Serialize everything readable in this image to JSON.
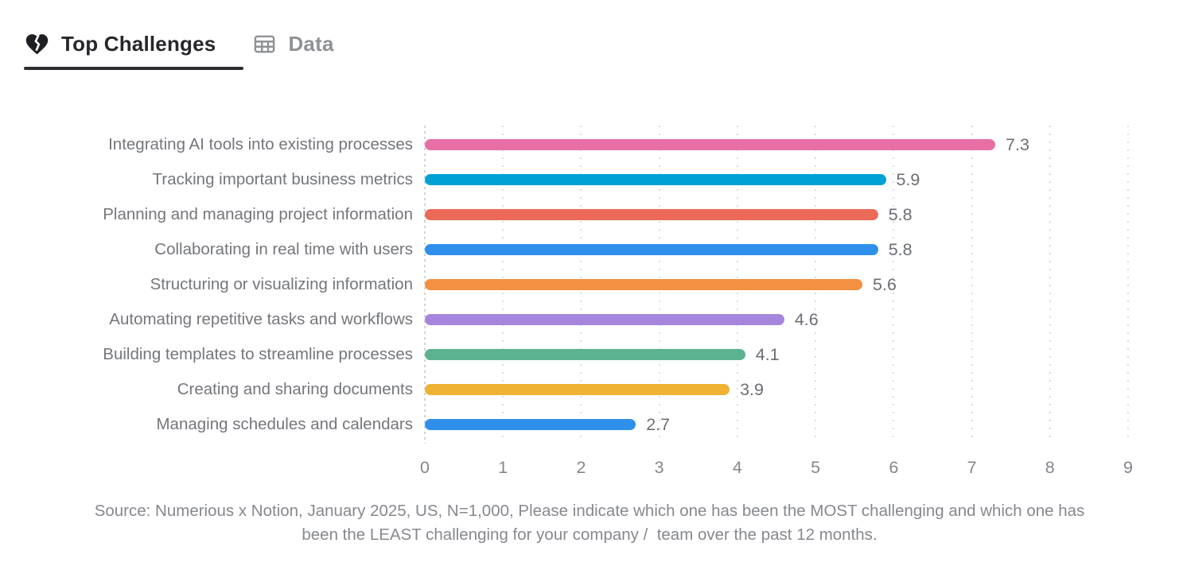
{
  "tabs": [
    {
      "label": "Top Challenges",
      "icon": "broken-heart-icon",
      "active": true
    },
    {
      "label": "Data",
      "icon": "table-icon",
      "active": false
    }
  ],
  "chart_data": {
    "type": "bar",
    "orientation": "horizontal",
    "title": "Top Challenges",
    "categories": [
      "Integrating AI tools into existing processes",
      "Tracking important business metrics",
      "Planning and managing project information",
      "Collaborating in real time with users",
      "Structuring or visualizing information",
      "Automating repetitive tasks and workflows",
      "Building templates to streamline processes",
      "Creating and sharing documents",
      "Managing schedules and calendars"
    ],
    "values": [
      7.3,
      5.9,
      5.8,
      5.8,
      5.6,
      4.6,
      4.1,
      3.9,
      2.7
    ],
    "value_labels": [
      "7.3",
      "5.9",
      "5.8",
      "5.8",
      "5.6",
      "4.6",
      "4.1",
      "3.9",
      "2.7"
    ],
    "bar_colors": [
      "#E76FA6",
      "#00A2D3",
      "#EC6A58",
      "#2E90EB",
      "#F39041",
      "#A586DC",
      "#5BB38F",
      "#EFB233",
      "#2E90EB"
    ],
    "xlim": [
      0,
      9
    ],
    "x_ticks": [
      0,
      1,
      2,
      3,
      4,
      5,
      6,
      7,
      8,
      9
    ],
    "grid": "dotted-vertical",
    "legend": "none"
  },
  "source_note": "Source: Numerious x Notion, January 2025, US, N=1,000, Please indicate which one has been the MOST challenging and which one has been the LEAST challenging for your company /  team over the past 12 months.",
  "colors": {
    "background": "#ffffff",
    "active_tab_text": "#26272b",
    "inactive_tab_text": "#8f9296",
    "active_underline": "#2c2d31",
    "category_text": "#73767b",
    "value_text": "#6b6e74",
    "tick_text": "#84878c",
    "source_text": "#85888e",
    "gridline": "#dcdce0"
  }
}
